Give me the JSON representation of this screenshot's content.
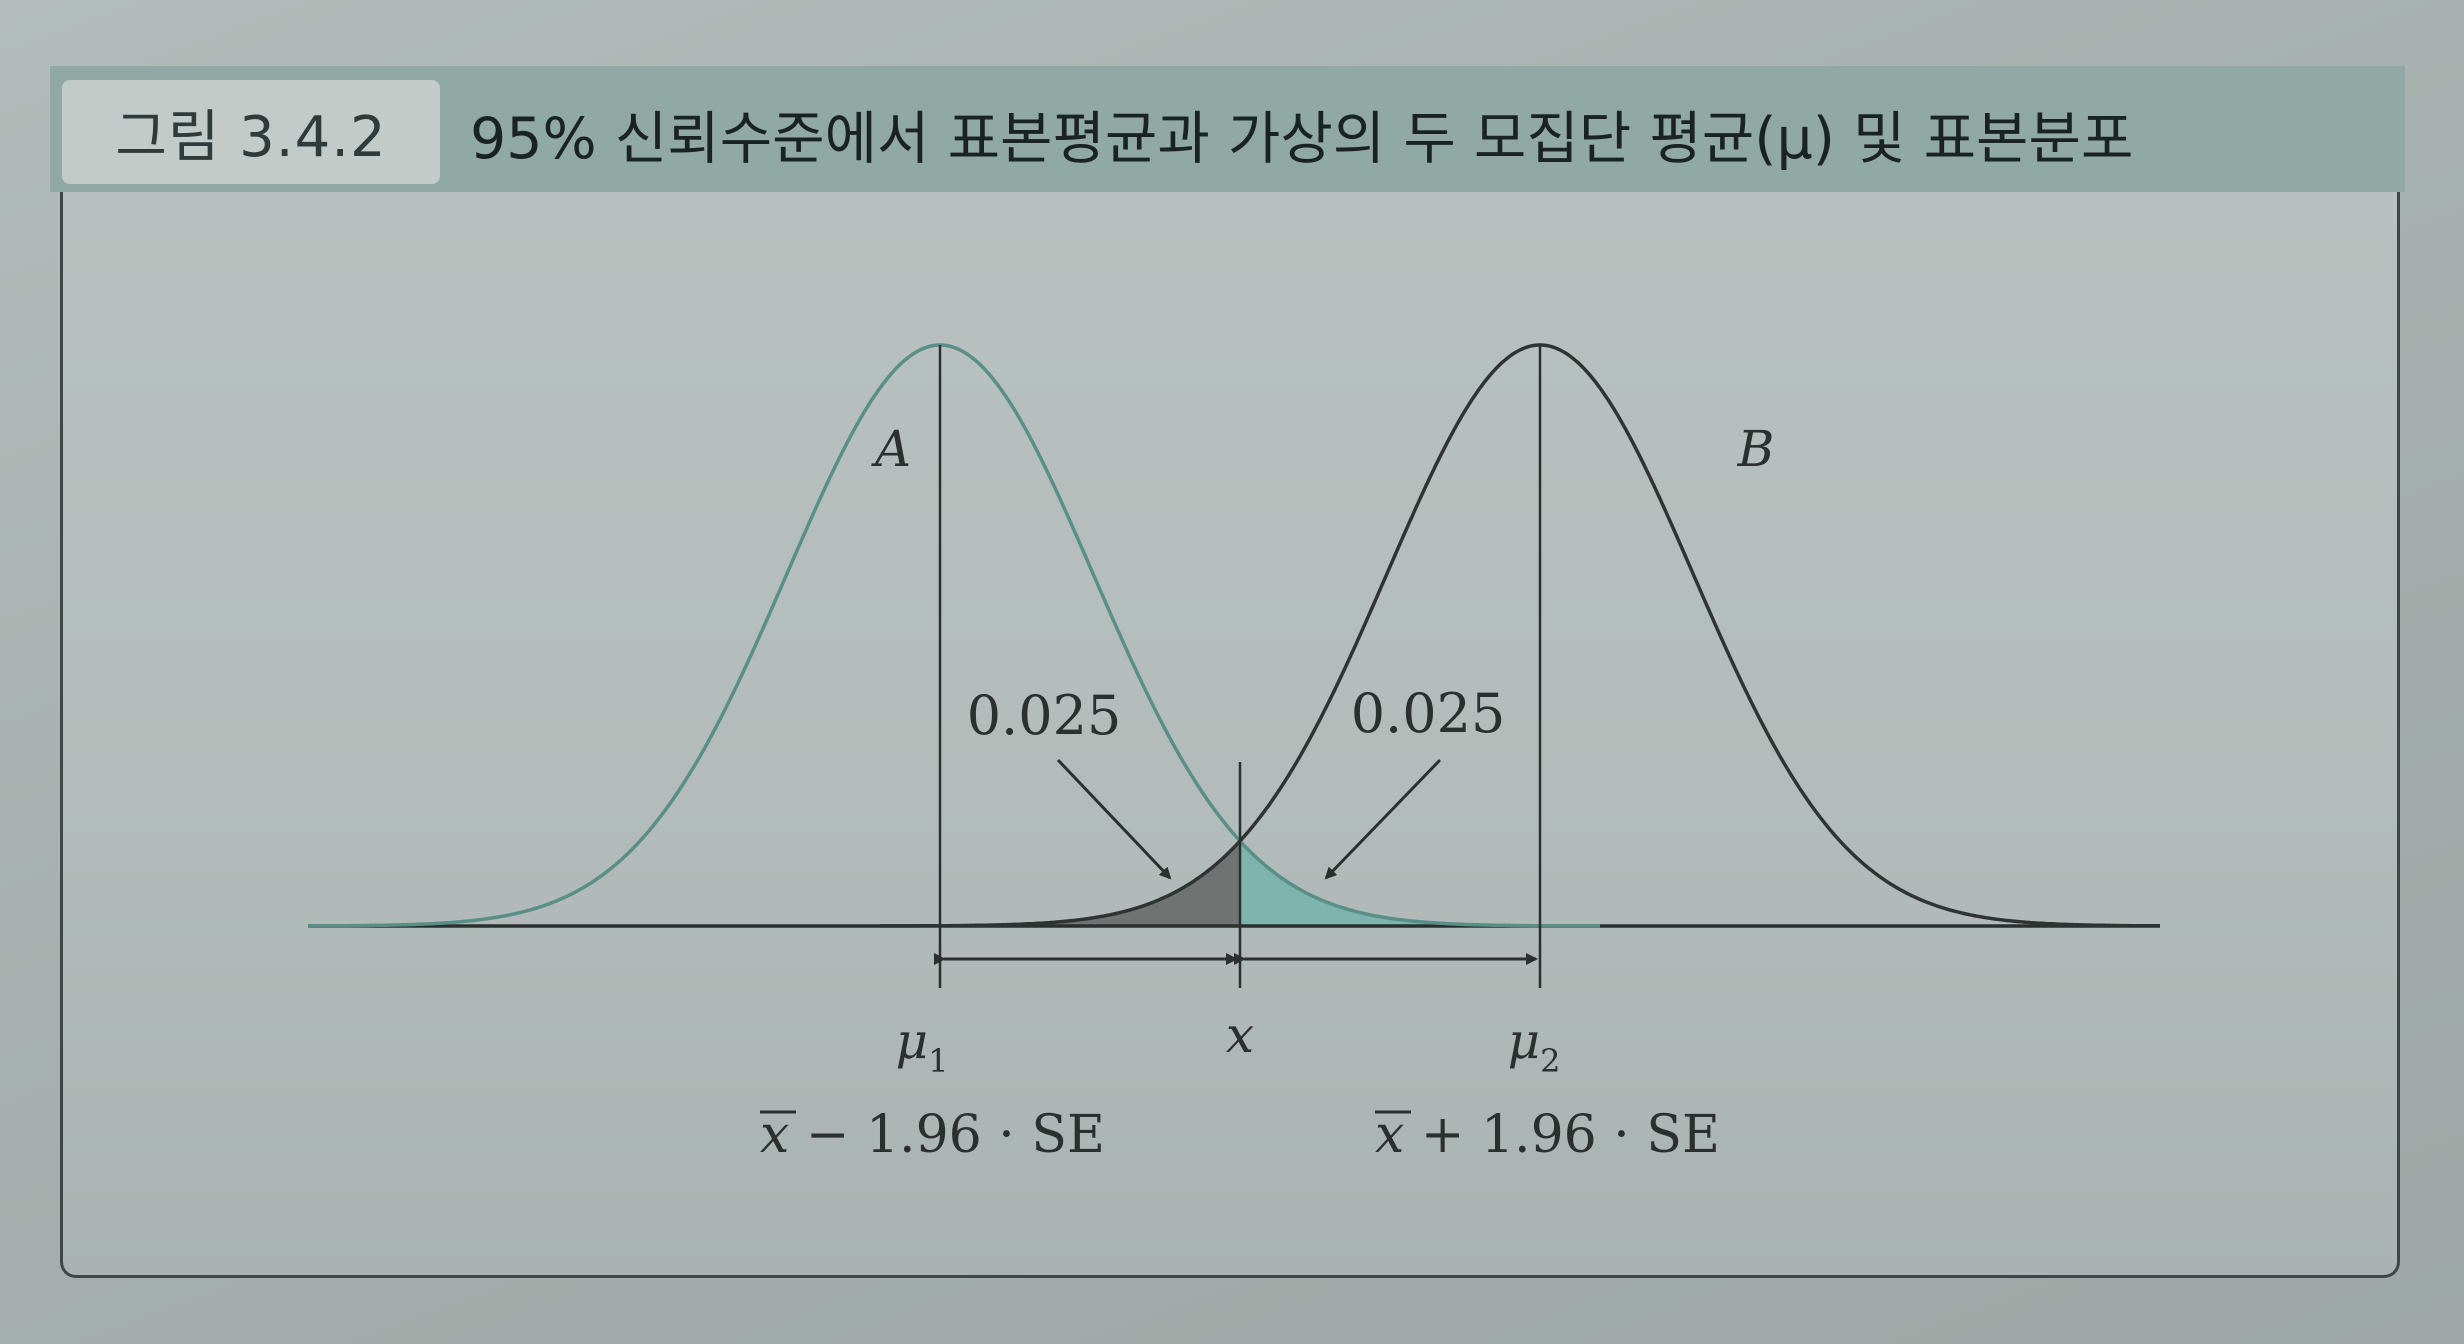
{
  "figure": {
    "label": "그림 3.4.2",
    "title": "95% 신뢰수준에서 표본평균과 가상의 두 모집단 평균(μ) 및 표본분포"
  },
  "curves": {
    "a": {
      "label": "A",
      "color": "#5a8f88"
    },
    "b": {
      "label": "B",
      "color": "#2f3433"
    }
  },
  "tails": {
    "left_area": "0.025",
    "right_area": "0.025",
    "left_fill": "#6f7473",
    "right_fill": "#7fb3ad"
  },
  "axis": {
    "mu1": "μ",
    "mu1_sub": "1",
    "x": "x",
    "mu2": "μ",
    "mu2_sub": "2"
  },
  "bounds": {
    "lower_xbar": "x",
    "lower_expr": " − 1.96 · SE",
    "upper_xbar": "x",
    "upper_expr": " + 1.96 · SE"
  }
}
